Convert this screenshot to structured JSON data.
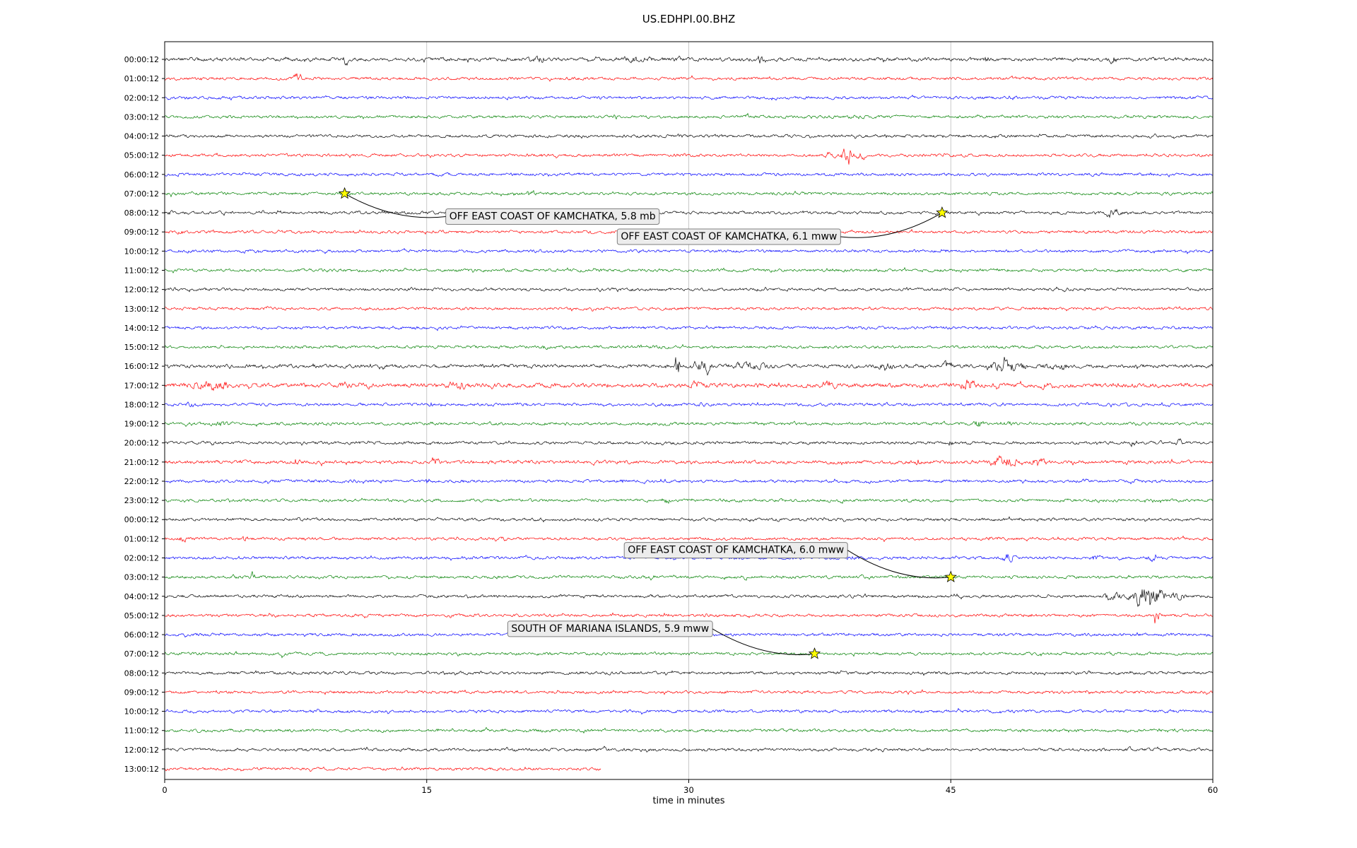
{
  "title": "US.EDHPI.00.BHZ",
  "chart_data": {
    "type": "line",
    "subtype": "seismogram-dayplot",
    "title": "US.EDHPI.00.BHZ",
    "xlabel": "time in minutes",
    "xlim": [
      0,
      60
    ],
    "x_ticks": [
      0,
      15,
      30,
      45,
      60
    ],
    "grid": "vertical-only",
    "legend": "none",
    "trace_color_cycle": [
      "#000000",
      "#ff0000",
      "#0000ff",
      "#008000"
    ],
    "marker": {
      "shape": "star",
      "fill": "#ffff00",
      "edge": "#000000"
    },
    "rows": [
      {
        "label": "00:00:12",
        "scale": 1.2,
        "bursts": [
          [
            10.2,
            10.6,
            4
          ],
          [
            21,
            22,
            2.2
          ],
          [
            26,
            28,
            2
          ],
          [
            33.8,
            34.3,
            2.5
          ],
          [
            46.8,
            47.2,
            2
          ],
          [
            54,
            54.6,
            2.8
          ]
        ]
      },
      {
        "label": "01:00:12",
        "bursts": [
          [
            7.3,
            7.9,
            4.5
          ]
        ]
      },
      {
        "label": "02:00:12",
        "bursts": [
          [
            48,
            49,
            1.5
          ]
        ]
      },
      {
        "label": "03:00:12",
        "bursts": [
          [
            25.6,
            26.0,
            3
          ],
          [
            39,
            40,
            1.5
          ]
        ]
      },
      {
        "label": "04:00:12",
        "bursts": [
          [
            29,
            30,
            1.5
          ],
          [
            41,
            41.4,
            1.8
          ]
        ]
      },
      {
        "label": "05:00:12",
        "bursts": [
          [
            37.5,
            38.5,
            3
          ],
          [
            38.7,
            39.5,
            8
          ],
          [
            39.5,
            40.2,
            4
          ]
        ]
      },
      {
        "label": "06:00:12",
        "bursts": [
          [
            0.5,
            1,
            1.5
          ]
        ]
      },
      {
        "label": "07:00:12",
        "bursts": [
          [
            0.3,
            0.8,
            1.8
          ],
          [
            20,
            21.5,
            2.2
          ]
        ]
      },
      {
        "label": "08:00:12",
        "bursts": [
          [
            0.2,
            0.6,
            2
          ],
          [
            53.8,
            54.8,
            4
          ]
        ]
      },
      {
        "label": "09:00:12",
        "bursts": [
          [
            0.5,
            1.2,
            2
          ],
          [
            2,
            3,
            1.5
          ]
        ]
      },
      {
        "label": "10:00:12",
        "bursts": []
      },
      {
        "label": "11:00:12",
        "bursts": [
          [
            13.5,
            14,
            1.6
          ]
        ]
      },
      {
        "label": "12:00:12",
        "bursts": [
          [
            0.3,
            0.9,
            1.8
          ]
        ]
      },
      {
        "label": "13:00:12",
        "bursts": [
          [
            44.8,
            45.2,
            2
          ]
        ]
      },
      {
        "label": "14:00:12",
        "bursts": []
      },
      {
        "label": "15:00:12",
        "bursts": [
          [
            21.5,
            22,
            1.8
          ],
          [
            27,
            27.5,
            1.6
          ]
        ]
      },
      {
        "label": "16:00:12",
        "scale": 1.2,
        "bursts": [
          [
            29.2,
            29.5,
            11
          ],
          [
            30,
            31.5,
            3.5
          ],
          [
            32,
            35,
            2.2
          ],
          [
            40.5,
            42,
            2
          ],
          [
            44.5,
            45.2,
            3
          ],
          [
            47,
            49.5,
            3.5
          ],
          [
            50,
            52,
            2
          ]
        ]
      },
      {
        "label": "17:00:12",
        "scale": 1.5,
        "bursts": [
          [
            1.5,
            4,
            2.5
          ],
          [
            11.5,
            12,
            2
          ],
          [
            16,
            17.5,
            2.2
          ],
          [
            30,
            31,
            2
          ],
          [
            37.5,
            38.5,
            2.5
          ],
          [
            45.5,
            46.5,
            3
          ],
          [
            50,
            51,
            2
          ]
        ]
      },
      {
        "label": "18:00:12",
        "bursts": [
          [
            1,
            2,
            2
          ],
          [
            15,
            15.4,
            2.5
          ],
          [
            30.5,
            31,
            1.8
          ]
        ]
      },
      {
        "label": "19:00:12",
        "bursts": [
          [
            2.5,
            4,
            2.2
          ],
          [
            46.3,
            46.9,
            3.5
          ],
          [
            48,
            48.5,
            2
          ]
        ]
      },
      {
        "label": "20:00:12",
        "bursts": [
          [
            2.5,
            3,
            2.5
          ],
          [
            44.8,
            45.2,
            2.5
          ],
          [
            55.2,
            55.8,
            3
          ],
          [
            57.8,
            58.3,
            3
          ]
        ]
      },
      {
        "label": "21:00:12",
        "scale": 1.2,
        "bursts": [
          [
            7.3,
            7.8,
            3
          ],
          [
            15.3,
            15.8,
            3
          ],
          [
            42.8,
            43.3,
            2.5
          ],
          [
            47,
            49,
            3.5
          ],
          [
            49.5,
            50.5,
            3
          ]
        ]
      },
      {
        "label": "22:00:12",
        "bursts": [
          [
            14.9,
            15.2,
            3
          ],
          [
            26,
            26.5,
            1.8
          ],
          [
            52.5,
            53,
            2
          ]
        ]
      },
      {
        "label": "23:00:12",
        "bursts": [
          [
            28.5,
            29,
            2.2
          ],
          [
            38.5,
            39,
            1.8
          ]
        ]
      },
      {
        "label": "00:00:12",
        "bursts": []
      },
      {
        "label": "01:00:12",
        "bursts": [
          [
            0.8,
            1.3,
            2.5
          ],
          [
            4.3,
            4.8,
            2.2
          ],
          [
            19.3,
            19.8,
            2.5
          ],
          [
            47,
            47.5,
            1.8
          ]
        ]
      },
      {
        "label": "02:00:12",
        "bursts": [
          [
            39,
            39.5,
            2
          ],
          [
            47.8,
            48.8,
            3.5
          ],
          [
            52.8,
            53.8,
            2.5
          ],
          [
            56,
            57,
            2.5
          ]
        ]
      },
      {
        "label": "03:00:12",
        "bursts": [
          [
            4.8,
            5.3,
            4
          ],
          [
            33,
            33.5,
            1.8
          ]
        ]
      },
      {
        "label": "04:00:12",
        "bursts": [
          [
            53.5,
            55,
            3
          ],
          [
            55,
            57.5,
            8
          ],
          [
            57.5,
            58.5,
            4
          ]
        ]
      },
      {
        "label": "05:00:12",
        "bursts": [
          [
            56.6,
            57.0,
            6
          ]
        ]
      },
      {
        "label": "06:00:12",
        "bursts": []
      },
      {
        "label": "07:00:12",
        "bursts": [
          [
            6.5,
            7,
            1.8
          ]
        ]
      },
      {
        "label": "08:00:12",
        "bursts": []
      },
      {
        "label": "09:00:12",
        "bursts": []
      },
      {
        "label": "10:00:12",
        "bursts": []
      },
      {
        "label": "11:00:12",
        "bursts": []
      },
      {
        "label": "12:00:12",
        "bursts": [
          [
            55,
            55.4,
            2
          ]
        ]
      },
      {
        "label": "13:00:12",
        "end_minute": 25,
        "bursts": []
      }
    ],
    "events": [
      {
        "label": "OFF EAST COAST OF KAMCHATKA, 5.8 mb",
        "star_row": 7,
        "star_minute": 10.3,
        "box_row": 8.2,
        "box_minute": 22.2,
        "anchor": "left"
      },
      {
        "label": "OFF EAST COAST OF KAMCHATKA, 6.1 mww",
        "star_row": 8,
        "star_minute": 44.5,
        "box_row": 9.25,
        "box_minute": 32.3,
        "anchor": "right"
      },
      {
        "label": "OFF EAST COAST OF KAMCHATKA, 6.0 mww",
        "star_row": 27,
        "star_minute": 45.0,
        "box_row": 25.6,
        "box_minute": 32.7,
        "anchor": "right"
      },
      {
        "label": "SOUTH OF MARIANA ISLANDS, 5.9 mww",
        "star_row": 31,
        "star_minute": 37.2,
        "box_row": 29.7,
        "box_minute": 25.5,
        "anchor": "right"
      }
    ]
  }
}
